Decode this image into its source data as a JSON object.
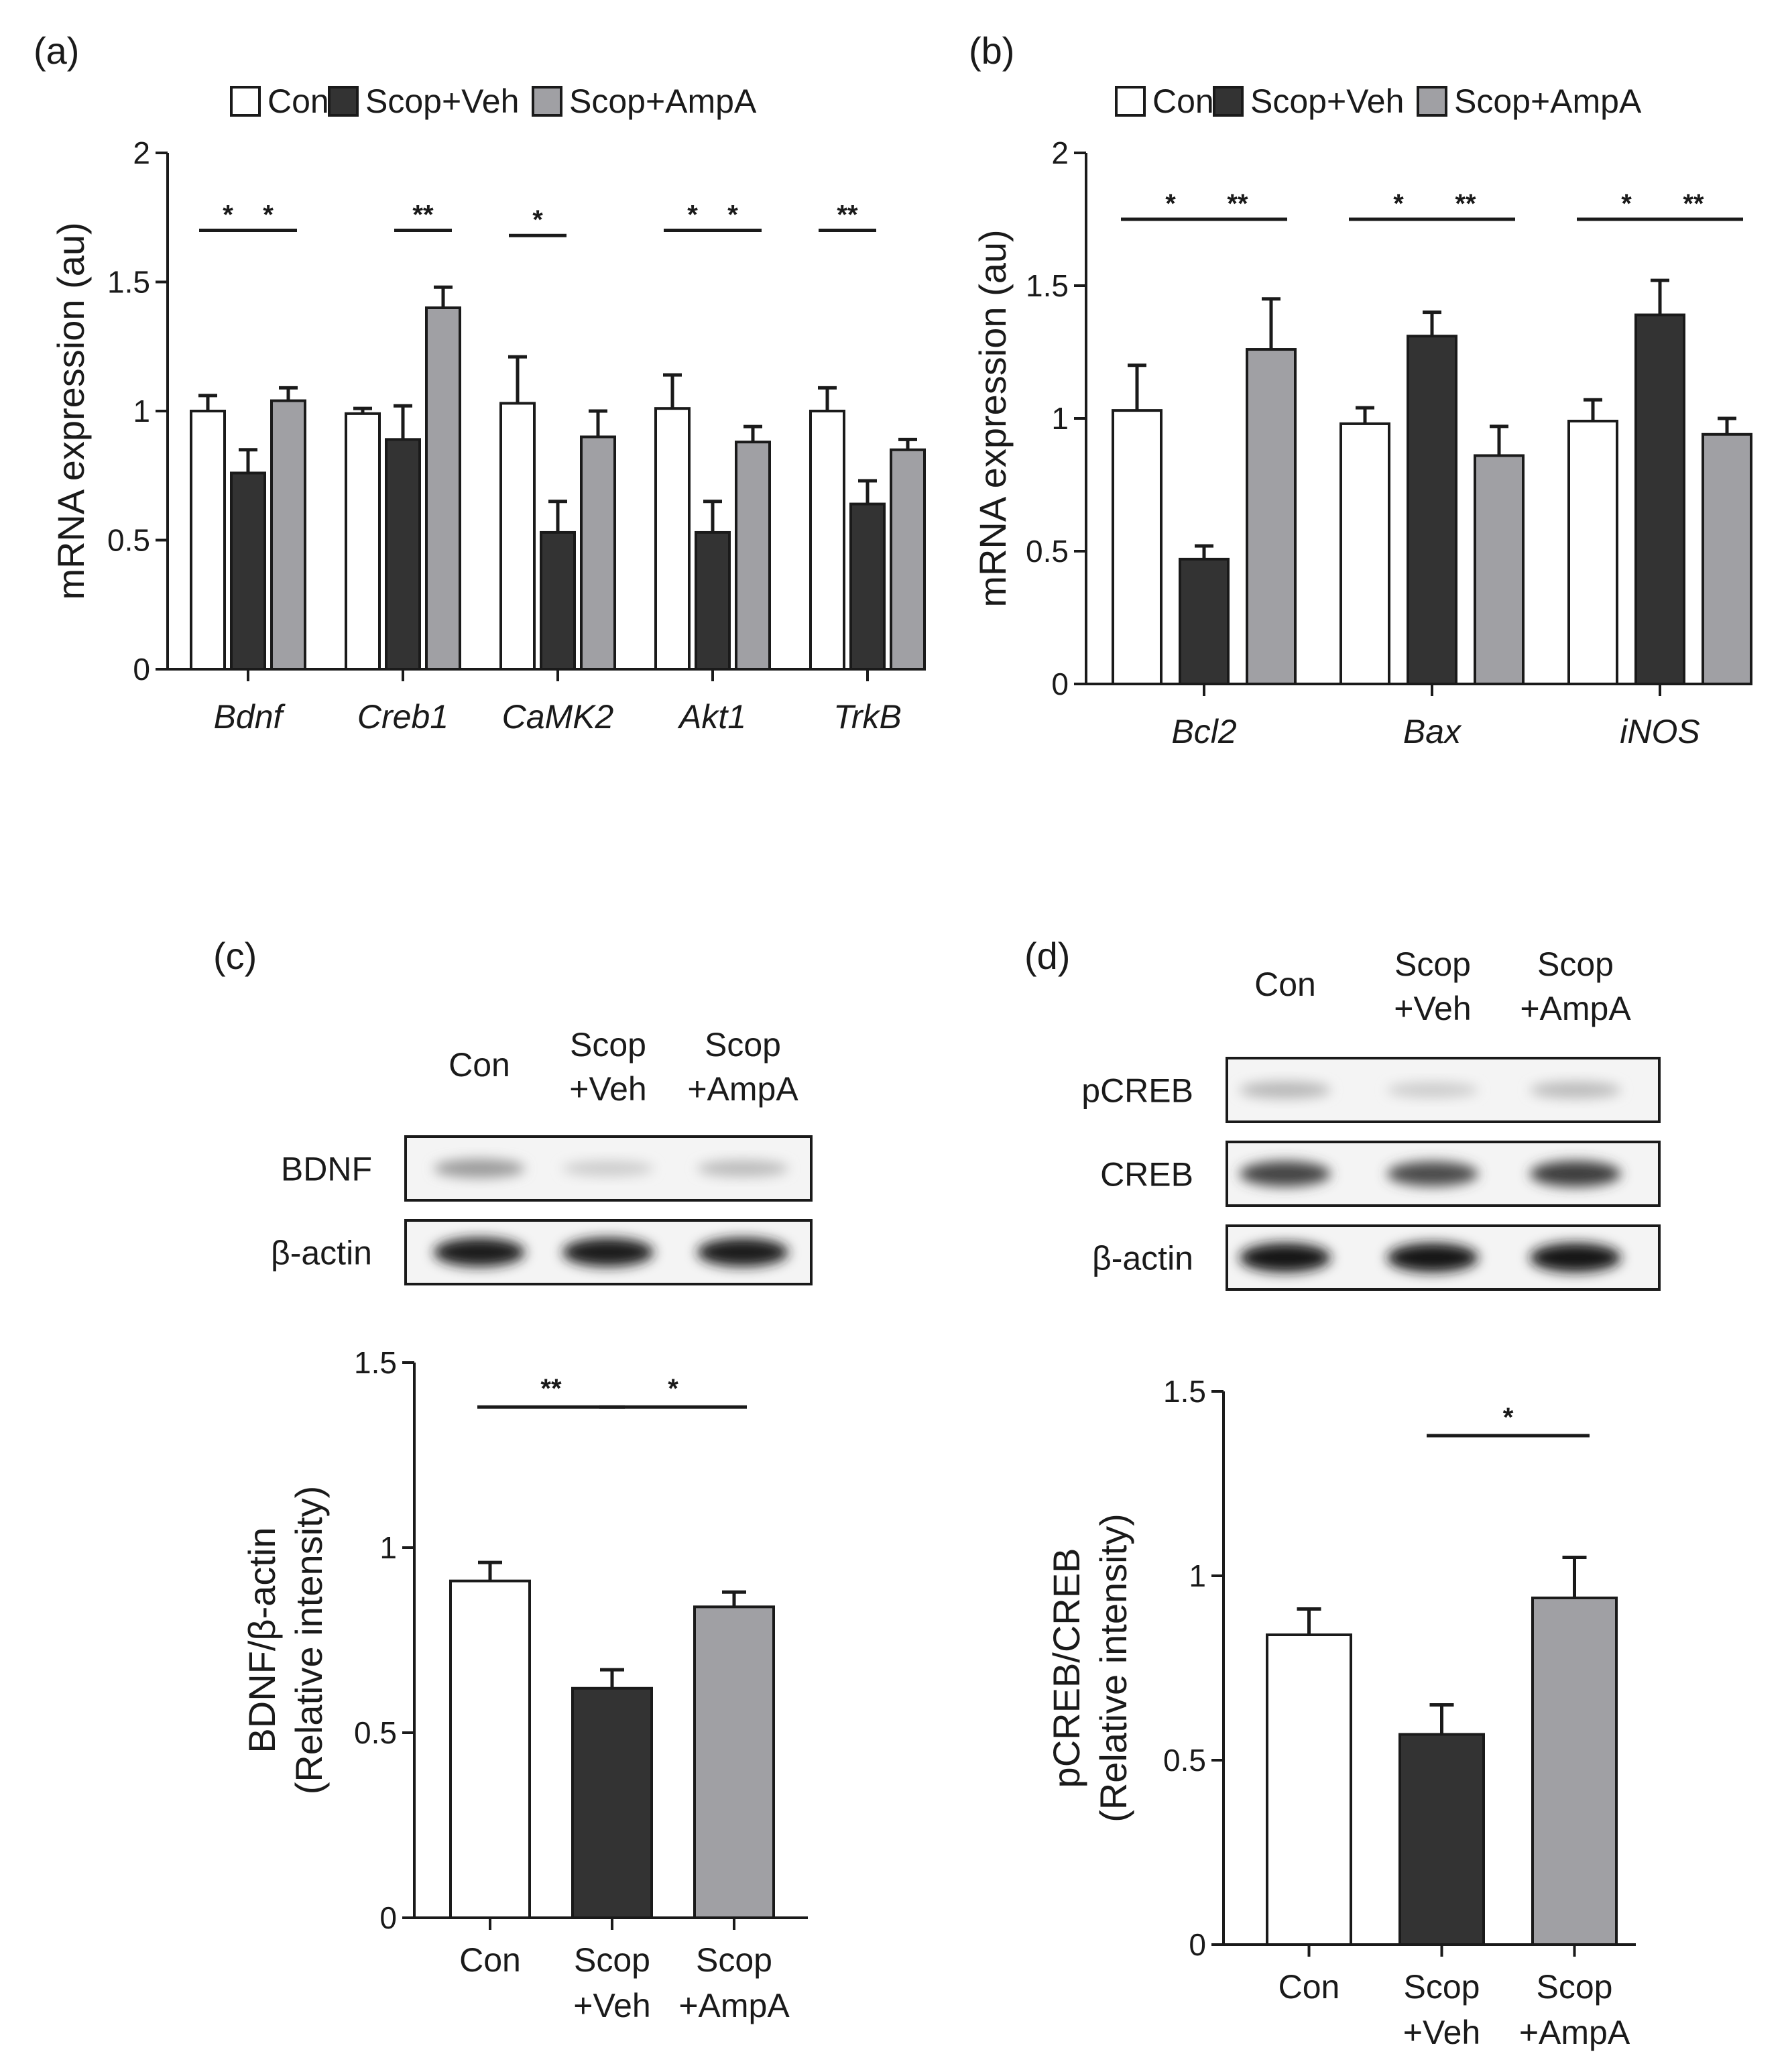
{
  "colors": {
    "con": "#ffffff",
    "veh": "#333333",
    "ampa": "#a0a0a4",
    "stroke": "#1a1a1a"
  },
  "legend": [
    "Con",
    "Scop+Veh",
    "Scop+AmpA"
  ],
  "chart_data": [
    {
      "panel": "(a)",
      "type": "bar",
      "ylabel": "mRNA expression (au)",
      "ylim": [
        0,
        2
      ],
      "yticks": [
        "0",
        "0.5",
        "1",
        "1.5",
        "2"
      ],
      "categories": [
        "Bdnf",
        "Creb1",
        "CaMK2",
        "Akt1",
        "TrkB"
      ],
      "series": [
        {
          "name": "Con",
          "values": [
            1.0,
            0.99,
            1.03,
            1.01,
            1.0
          ],
          "errors": [
            0.06,
            0.02,
            0.18,
            0.13,
            0.09
          ]
        },
        {
          "name": "Scop+Veh",
          "values": [
            0.76,
            0.89,
            0.53,
            0.53,
            0.64
          ],
          "errors": [
            0.09,
            0.13,
            0.12,
            0.12,
            0.09
          ]
        },
        {
          "name": "Scop+AmpA",
          "values": [
            1.04,
            1.4,
            0.9,
            0.88,
            0.85
          ],
          "errors": [
            0.05,
            0.08,
            0.1,
            0.06,
            0.04
          ]
        }
      ],
      "significance": [
        {
          "category": 0,
          "from": 0,
          "to": 1,
          "label": "*",
          "y": 1.7
        },
        {
          "category": 0,
          "from": 1,
          "to": 2,
          "label": "*",
          "y": 1.7
        },
        {
          "category": 1,
          "from": 1,
          "to": 2,
          "label": "**",
          "y": 1.7
        },
        {
          "category": 2,
          "from": 0,
          "to": 1,
          "label": "*",
          "y": 1.68
        },
        {
          "category": 3,
          "from": 0,
          "to": 1,
          "label": "*",
          "y": 1.7
        },
        {
          "category": 3,
          "from": 1,
          "to": 2,
          "label": "*",
          "y": 1.7
        },
        {
          "category": 4,
          "from": 0,
          "to": 1,
          "label": "**",
          "y": 1.7
        }
      ]
    },
    {
      "panel": "(b)",
      "type": "bar",
      "ylabel": "mRNA expression (au)",
      "ylim": [
        0,
        2
      ],
      "yticks": [
        "0",
        "0.5",
        "1",
        "1.5",
        "2"
      ],
      "categories": [
        "Bcl2",
        "Bax",
        "iNOS"
      ],
      "series": [
        {
          "name": "Con",
          "values": [
            1.03,
            0.98,
            0.99
          ],
          "errors": [
            0.17,
            0.06,
            0.08
          ]
        },
        {
          "name": "Scop+Veh",
          "values": [
            0.47,
            1.31,
            1.39
          ],
          "errors": [
            0.05,
            0.09,
            0.13
          ]
        },
        {
          "name": "Scop+AmpA",
          "values": [
            1.26,
            0.86,
            0.94
          ],
          "errors": [
            0.19,
            0.11,
            0.06
          ]
        }
      ],
      "significance": [
        {
          "category": 0,
          "from": 0,
          "to": 1,
          "label": "*",
          "y": 1.75
        },
        {
          "category": 0,
          "from": 1,
          "to": 2,
          "label": "**",
          "y": 1.75
        },
        {
          "category": 1,
          "from": 0,
          "to": 1,
          "label": "*",
          "y": 1.75
        },
        {
          "category": 1,
          "from": 1,
          "to": 2,
          "label": "**",
          "y": 1.75
        },
        {
          "category": 2,
          "from": 0,
          "to": 1,
          "label": "*",
          "y": 1.75
        },
        {
          "category": 2,
          "from": 1,
          "to": 2,
          "label": "**",
          "y": 1.75
        }
      ]
    },
    {
      "panel": "(c)",
      "type": "bar",
      "ylabel_lines": [
        "BDNF/β-actin",
        "(Relative intensity)"
      ],
      "ylim": [
        0,
        1.5
      ],
      "yticks": [
        "0",
        "0.5",
        "1",
        "1.5"
      ],
      "categories": [
        [
          "Con"
        ],
        [
          "Scop",
          "+Veh"
        ],
        [
          "Scop",
          "+AmpA"
        ]
      ],
      "values": [
        0.91,
        0.62,
        0.84
      ],
      "errors": [
        0.05,
        0.05,
        0.04
      ],
      "significance": [
        {
          "from": 0,
          "to": 1,
          "label": "**",
          "y": 1.38
        },
        {
          "from": 1,
          "to": 2,
          "label": "*",
          "y": 1.38
        }
      ],
      "blot": {
        "columns": [
          [
            "Con"
          ],
          [
            "Scop",
            "+Veh"
          ],
          [
            "Scop",
            "+AmpA"
          ]
        ],
        "rows": [
          {
            "label": "BDNF",
            "intensity": [
              0.35,
              0.12,
              0.2
            ]
          },
          {
            "label": "β-actin",
            "intensity": [
              0.95,
              0.95,
              0.95
            ]
          }
        ]
      }
    },
    {
      "panel": "(d)",
      "type": "bar",
      "ylabel_lines": [
        "pCREB/CREB",
        "(Relative intensity)"
      ],
      "ylim": [
        0,
        1.5
      ],
      "yticks": [
        "0",
        "0.5",
        "1",
        "1.5"
      ],
      "categories": [
        [
          "Con"
        ],
        [
          "Scop",
          "+Veh"
        ],
        [
          "Scop",
          "+AmpA"
        ]
      ],
      "values": [
        0.84,
        0.57,
        0.94
      ],
      "errors": [
        0.07,
        0.08,
        0.11
      ],
      "significance": [
        {
          "from": 1,
          "to": 2,
          "label": "*",
          "y": 1.38
        }
      ],
      "blot": {
        "columns": [
          [
            "Con"
          ],
          [
            "Scop",
            "+Veh"
          ],
          [
            "Scop",
            "+AmpA"
          ]
        ],
        "rows": [
          {
            "label": "pCREB",
            "intensity": [
              0.22,
              0.12,
              0.2
            ]
          },
          {
            "label": "CREB",
            "intensity": [
              0.75,
              0.72,
              0.78
            ]
          },
          {
            "label": "β-actin",
            "intensity": [
              0.98,
              0.98,
              0.98
            ]
          }
        ]
      }
    }
  ]
}
